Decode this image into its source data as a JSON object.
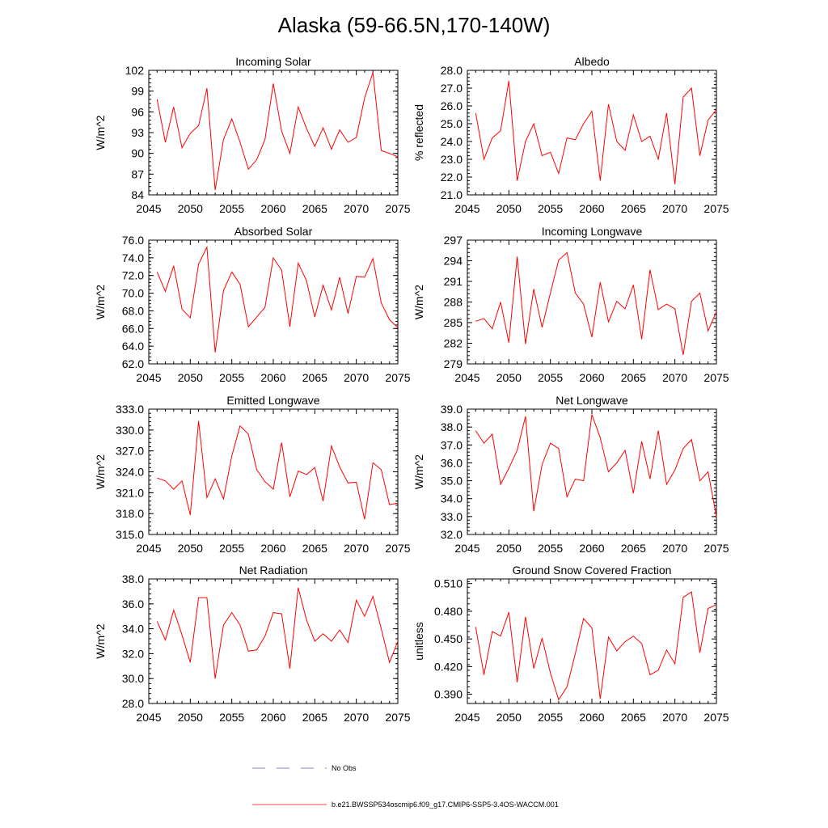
{
  "figure": {
    "title": "Alaska (59-66.5N,170-140W)",
    "legend": [
      {
        "label": "No Obs",
        "color": "#5a5ac8",
        "dash": true
      },
      {
        "label": "b.e21.BWSSP534oscmip6.f09_g17.CMIP6-SSP5-3.4OS-WACCM.001",
        "color": "#ff0000",
        "dash": false
      }
    ]
  },
  "chart_data": [
    {
      "type": "line",
      "title": "Incoming Solar",
      "ylabel": "W/m^2",
      "xlim": [
        2045,
        2075
      ],
      "ylim": [
        84,
        102
      ],
      "yticks": [
        "84",
        "87",
        "90",
        "93",
        "96",
        "99",
        "102"
      ],
      "xticks": [
        "2045",
        "2050",
        "2055",
        "2060",
        "2065",
        "2070",
        "2075"
      ],
      "x_start": 2046,
      "values": [
        97.8,
        91.6,
        96.7,
        90.8,
        92.9,
        94.0,
        99.4,
        84.7,
        92.0,
        95.0,
        91.6,
        87.7,
        89.1,
        92.0,
        100.1,
        93.2,
        90.0,
        96.7,
        93.6,
        91.0,
        93.7,
        90.6,
        93.4,
        91.6,
        92.3,
        98.0,
        101.7,
        90.4,
        90.0,
        89.5
      ]
    },
    {
      "type": "line",
      "title": "Albedo",
      "ylabel": "% reflected",
      "xlim": [
        2045,
        2075
      ],
      "ylim": [
        21,
        28
      ],
      "yticks": [
        "21.0",
        "22.0",
        "23.0",
        "24.0",
        "25.0",
        "26.0",
        "27.0",
        "28.0"
      ],
      "xticks": [
        "2045",
        "2050",
        "2055",
        "2060",
        "2065",
        "2070",
        "2075"
      ],
      "x_start": 2046,
      "values": [
        25.6,
        23.0,
        24.2,
        24.6,
        27.4,
        21.8,
        24.0,
        25.0,
        23.2,
        23.4,
        22.2,
        24.2,
        24.1,
        25.0,
        25.7,
        21.8,
        26.1,
        24.0,
        23.5,
        25.5,
        24.0,
        24.3,
        23.0,
        25.6,
        21.6,
        26.5,
        27.0,
        23.2,
        25.2,
        25.8
      ]
    },
    {
      "type": "line",
      "title": "Absorbed Solar",
      "ylabel": "W/m^2",
      "xlim": [
        2045,
        2075
      ],
      "ylim": [
        62,
        76
      ],
      "yticks": [
        "62.0",
        "64.0",
        "66.0",
        "68.0",
        "70.0",
        "72.0",
        "74.0",
        "76.0"
      ],
      "xticks": [
        "2045",
        "2050",
        "2055",
        "2060",
        "2065",
        "2070",
        "2075"
      ],
      "x_start": 2046,
      "values": [
        72.4,
        70.2,
        73.1,
        68.2,
        67.2,
        73.3,
        75.2,
        63.3,
        70.3,
        72.4,
        71.0,
        66.2,
        67.3,
        68.4,
        74.0,
        72.6,
        66.2,
        73.4,
        71.4,
        67.3,
        70.9,
        68.1,
        71.8,
        67.7,
        71.9,
        71.8,
        73.9,
        68.9,
        67.0,
        66.1
      ]
    },
    {
      "type": "line",
      "title": "Incoming Longwave",
      "ylabel": "W/m^2",
      "xlim": [
        2045,
        2075
      ],
      "ylim": [
        279,
        297
      ],
      "yticks": [
        "279",
        "282",
        "285",
        "288",
        "291",
        "294",
        "297"
      ],
      "xticks": [
        "2045",
        "2050",
        "2055",
        "2060",
        "2065",
        "2070",
        "2075"
      ],
      "x_start": 2046,
      "values": [
        285.2,
        285.6,
        284.1,
        288.0,
        282.1,
        294.6,
        281.9,
        289.9,
        284.3,
        289.3,
        294.1,
        295.2,
        289.3,
        287.7,
        282.9,
        290.9,
        285.1,
        288.1,
        287.0,
        290.5,
        282.6,
        292.7,
        286.9,
        287.7,
        287.0,
        280.3,
        288.1,
        289.3,
        283.8,
        286.6
      ]
    },
    {
      "type": "line",
      "title": "Emitted Longwave",
      "ylabel": "W/m^2",
      "xlim": [
        2045,
        2075
      ],
      "ylim": [
        315,
        333
      ],
      "yticks": [
        "315.0",
        "318.0",
        "321.0",
        "324.0",
        "327.0",
        "330.0",
        "333.0"
      ],
      "xticks": [
        "2045",
        "2050",
        "2055",
        "2060",
        "2065",
        "2070",
        "2075"
      ],
      "x_start": 2046,
      "values": [
        323.1,
        322.7,
        321.5,
        322.7,
        317.8,
        331.3,
        320.3,
        323.0,
        320.1,
        326.3,
        330.6,
        329.4,
        324.3,
        322.6,
        321.5,
        328.2,
        320.4,
        324.1,
        323.6,
        324.6,
        319.8,
        327.7,
        324.7,
        322.4,
        322.5,
        317.2,
        325.3,
        324.3,
        319.3,
        319.5
      ]
    },
    {
      "type": "line",
      "title": "Net Longwave",
      "ylabel": "W/m^2",
      "xlim": [
        2045,
        2075
      ],
      "ylim": [
        32,
        39
      ],
      "yticks": [
        "32.0",
        "33.0",
        "34.0",
        "35.0",
        "36.0",
        "37.0",
        "38.0",
        "39.0"
      ],
      "xticks": [
        "2045",
        "2050",
        "2055",
        "2060",
        "2065",
        "2070",
        "2075"
      ],
      "x_start": 2046,
      "values": [
        37.8,
        37.1,
        37.6,
        34.8,
        35.7,
        36.7,
        38.6,
        33.3,
        35.9,
        37.1,
        36.8,
        34.1,
        35.1,
        35.0,
        38.7,
        37.4,
        35.5,
        36.0,
        36.7,
        34.3,
        37.2,
        35.1,
        37.8,
        34.8,
        35.6,
        36.8,
        37.3,
        35.0,
        35.5,
        33.0
      ]
    },
    {
      "type": "line",
      "title": "Net Radiation",
      "ylabel": "W/m^2",
      "xlim": [
        2045,
        2075
      ],
      "ylim": [
        28,
        38
      ],
      "yticks": [
        "28.0",
        "30.0",
        "32.0",
        "34.0",
        "36.0",
        "38.0"
      ],
      "xticks": [
        "2045",
        "2050",
        "2055",
        "2060",
        "2065",
        "2070",
        "2075"
      ],
      "x_start": 2046,
      "values": [
        34.6,
        33.1,
        35.5,
        33.5,
        31.3,
        36.5,
        36.5,
        30.0,
        34.3,
        35.3,
        34.3,
        32.2,
        32.3,
        33.4,
        35.3,
        35.2,
        30.8,
        37.3,
        34.7,
        33.0,
        33.6,
        33.0,
        33.9,
        32.9,
        36.3,
        35.0,
        36.6,
        34.0,
        31.3,
        33.0
      ]
    },
    {
      "type": "line",
      "title": "Ground Snow Covered Fraction",
      "ylabel": "unitless",
      "xlim": [
        2045,
        2075
      ],
      "ylim": [
        0.38,
        0.515
      ],
      "yticks": [
        "0.390",
        "0.420",
        "0.450",
        "0.480",
        "0.510"
      ],
      "xticks": [
        "2045",
        "2050",
        "2055",
        "2060",
        "2065",
        "2070",
        "2075"
      ],
      "x_start": 2046,
      "values": [
        0.463,
        0.411,
        0.458,
        0.453,
        0.479,
        0.403,
        0.474,
        0.418,
        0.451,
        0.413,
        0.384,
        0.398,
        0.434,
        0.472,
        0.462,
        0.385,
        0.452,
        0.437,
        0.447,
        0.453,
        0.445,
        0.411,
        0.416,
        0.438,
        0.423,
        0.495,
        0.501,
        0.435,
        0.483,
        0.487
      ]
    }
  ]
}
